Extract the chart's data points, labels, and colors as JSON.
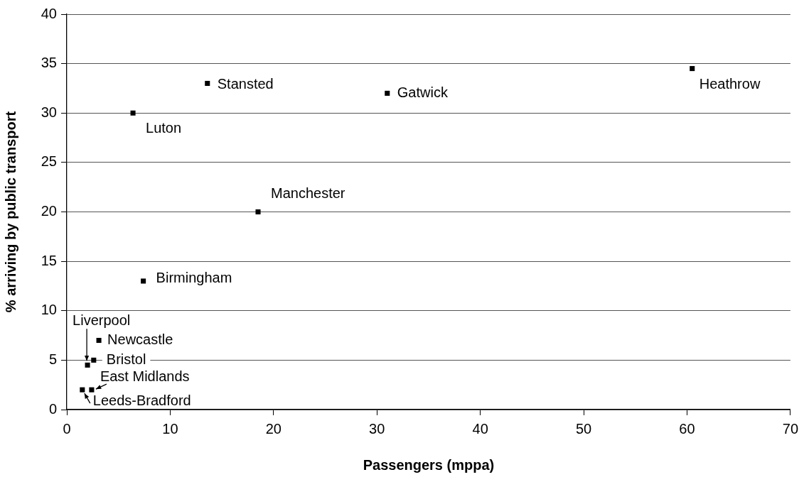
{
  "chart_data": {
    "type": "scatter",
    "xlabel": "Passengers (mppa)",
    "ylabel": "% arriving by public transport",
    "x": [
      60.5,
      31.0,
      13.6,
      6.4,
      18.5,
      7.4,
      3.1,
      2.6,
      2.0,
      2.4,
      1.5
    ],
    "series": [
      {
        "color": "#000000",
        "values": [
          34.5,
          32.0,
          33.0,
          30.0,
          20.0,
          13.0,
          7.0,
          5.0,
          4.5,
          2.0,
          2.0
        ]
      }
    ],
    "xlim": [
      0,
      70
    ],
    "xticks": [
      0,
      10,
      20,
      30,
      40,
      50,
      60,
      70
    ],
    "ylim": [
      0,
      40
    ],
    "yticks": [
      0,
      5,
      10,
      15,
      20,
      25,
      30,
      35,
      40
    ],
    "grid": "y",
    "legend": false,
    "marker": "square",
    "annotations": [
      {
        "text": "Heathrow",
        "x": 60.5,
        "y": 34.5
      },
      {
        "text": "Gatwick",
        "x": 31.0,
        "y": 32.0
      },
      {
        "text": "Stansted",
        "x": 13.6,
        "y": 33.0
      },
      {
        "text": "Luton",
        "x": 6.4,
        "y": 30.0
      },
      {
        "text": "Manchester",
        "x": 18.5,
        "y": 20.0
      },
      {
        "text": "Birmingham",
        "x": 7.4,
        "y": 13.0
      },
      {
        "text": "Newcastle",
        "x": 3.1,
        "y": 7.0
      },
      {
        "text": "Bristol",
        "x": 2.6,
        "y": 5.0
      },
      {
        "text": "Liverpool",
        "x": 2.0,
        "y": 4.5
      },
      {
        "text": "East Midlands",
        "x": 2.4,
        "y": 2.0
      },
      {
        "text": "Leeds-Bradford",
        "x": 1.5,
        "y": 2.0
      }
    ]
  }
}
